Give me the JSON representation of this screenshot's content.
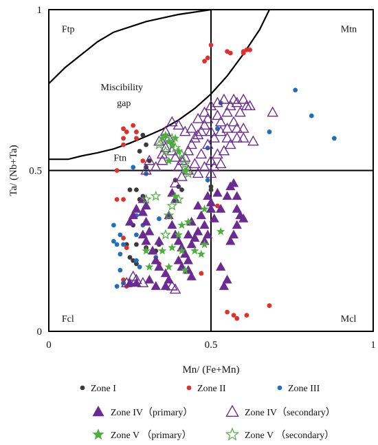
{
  "chart_data": {
    "type": "scatter",
    "xlabel": "Mn/ (Fe+Mn)",
    "ylabel": "Ta/ (Nb+Ta)",
    "xlim": [
      0,
      1
    ],
    "ylim": [
      0,
      1
    ],
    "x_ticks": [
      {
        "value": 0,
        "label": "0"
      },
      {
        "value": 0.5,
        "label": "0.5"
      },
      {
        "value": 1,
        "label": "1"
      }
    ],
    "y_ticks": [
      {
        "value": 0,
        "label": "0"
      },
      {
        "value": 0.5,
        "label": "0.5"
      },
      {
        "value": 1,
        "label": "1"
      }
    ],
    "grid": false,
    "legend_position": "bottom",
    "quadrant_labels": [
      {
        "text": "Ftp",
        "x": 0.04,
        "y": 0.93
      },
      {
        "text": "Mtn",
        "x": 0.9,
        "y": 0.93
      },
      {
        "text": "Ftn",
        "x": 0.2,
        "y": 0.53
      },
      {
        "text": "Fcl",
        "x": 0.04,
        "y": 0.03
      },
      {
        "text": "Mcl",
        "x": 0.9,
        "y": 0.03
      }
    ],
    "annotations": [
      {
        "text": "Miscibility",
        "x": 0.16,
        "y": 0.75
      },
      {
        "text": "gap",
        "x": 0.21,
        "y": 0.7
      }
    ],
    "dividers": {
      "x": 0.5,
      "y": 0.5
    },
    "curves": [
      {
        "name": "upper",
        "points": [
          [
            0,
            0.77
          ],
          [
            0.05,
            0.82
          ],
          [
            0.1,
            0.86
          ],
          [
            0.15,
            0.9
          ],
          [
            0.2,
            0.93
          ],
          [
            0.3,
            0.963
          ],
          [
            0.4,
            0.985
          ],
          [
            0.5,
            1.0
          ]
        ]
      },
      {
        "name": "lower",
        "points": [
          [
            0,
            0.535
          ],
          [
            0.06,
            0.535
          ],
          [
            0.1,
            0.545
          ],
          [
            0.15,
            0.555
          ],
          [
            0.2,
            0.567
          ],
          [
            0.25,
            0.585
          ],
          [
            0.3,
            0.606
          ],
          [
            0.35,
            0.628
          ],
          [
            0.4,
            0.657
          ],
          [
            0.45,
            0.693
          ],
          [
            0.5,
            0.738
          ],
          [
            0.55,
            0.794
          ],
          [
            0.6,
            0.862
          ],
          [
            0.65,
            0.938
          ],
          [
            0.68,
            1.0
          ]
        ]
      }
    ],
    "series": [
      {
        "name": "Zone I",
        "marker": "circle",
        "color": "#3a3a3a",
        "points": [
          [
            0.25,
            0.44
          ],
          [
            0.29,
            0.61
          ],
          [
            0.3,
            0.58
          ],
          [
            0.31,
            0.53
          ],
          [
            0.3,
            0.51
          ],
          [
            0.27,
            0.44
          ],
          [
            0.29,
            0.42
          ],
          [
            0.28,
            0.41
          ],
          [
            0.26,
            0.33
          ],
          [
            0.24,
            0.27
          ],
          [
            0.27,
            0.27
          ],
          [
            0.3,
            0.26
          ],
          [
            0.25,
            0.23
          ],
          [
            0.26,
            0.22
          ],
          [
            0.27,
            0.21
          ],
          [
            0.34,
            0.27
          ],
          [
            0.33,
            0.25
          ],
          [
            0.38,
            0.58
          ],
          [
            0.39,
            0.47
          ],
          [
            0.4,
            0.45
          ],
          [
            0.41,
            0.44
          ],
          [
            0.5,
            0.45
          ],
          [
            0.5,
            0.44
          ],
          [
            0.28,
            0.56
          ]
        ]
      },
      {
        "name": "Zone II",
        "marker": "circle",
        "color": "#e0302b",
        "points": [
          [
            0.48,
            0.84
          ],
          [
            0.49,
            0.85
          ],
          [
            0.5,
            0.89
          ],
          [
            0.55,
            0.87
          ],
          [
            0.56,
            0.865
          ],
          [
            0.6,
            0.87
          ],
          [
            0.61,
            0.875
          ],
          [
            0.62,
            0.875
          ],
          [
            0.6,
            0.865
          ],
          [
            0.23,
            0.63
          ],
          [
            0.24,
            0.62
          ],
          [
            0.23,
            0.6
          ],
          [
            0.23,
            0.58
          ],
          [
            0.26,
            0.64
          ],
          [
            0.27,
            0.62
          ],
          [
            0.27,
            0.6
          ],
          [
            0.21,
            0.5
          ],
          [
            0.21,
            0.41
          ],
          [
            0.23,
            0.41
          ],
          [
            0.23,
            0.29
          ],
          [
            0.24,
            0.26
          ],
          [
            0.23,
            0.16
          ],
          [
            0.23,
            0.15
          ],
          [
            0.24,
            0.14
          ],
          [
            0.34,
            0.21
          ],
          [
            0.47,
            0.18
          ],
          [
            0.55,
            0.06
          ],
          [
            0.57,
            0.05
          ],
          [
            0.58,
            0.04
          ],
          [
            0.61,
            0.05
          ],
          [
            0.68,
            0.08
          ],
          [
            0.52,
            0.39
          ],
          [
            0.29,
            0.53
          ]
        ]
      },
      {
        "name": "Zone III",
        "marker": "circle",
        "color": "#1f6fbf",
        "points": [
          [
            0.76,
            0.75
          ],
          [
            0.81,
            0.67
          ],
          [
            0.88,
            0.6
          ],
          [
            0.68,
            0.62
          ],
          [
            0.53,
            0.71
          ],
          [
            0.49,
            0.57
          ],
          [
            0.26,
            0.51
          ],
          [
            0.2,
            0.33
          ],
          [
            0.2,
            0.28
          ],
          [
            0.22,
            0.3
          ],
          [
            0.21,
            0.27
          ],
          [
            0.23,
            0.27
          ],
          [
            0.27,
            0.36
          ],
          [
            0.27,
            0.3
          ],
          [
            0.22,
            0.24
          ],
          [
            0.22,
            0.19
          ],
          [
            0.27,
            0.22
          ],
          [
            0.28,
            0.2
          ],
          [
            0.33,
            0.23
          ],
          [
            0.34,
            0.35
          ],
          [
            0.29,
            0.33
          ],
          [
            0.21,
            0.14
          ],
          [
            0.23,
            0.15
          ],
          [
            0.3,
            0.49
          ],
          [
            0.49,
            0.47
          ],
          [
            0.52,
            0.63
          ]
        ]
      },
      {
        "name": "Zone IV（primary）",
        "marker": "triangle",
        "color": "#6b2c91",
        "points": [
          [
            0.29,
            0.41
          ],
          [
            0.3,
            0.39
          ],
          [
            0.29,
            0.37
          ],
          [
            0.3,
            0.34
          ],
          [
            0.31,
            0.31
          ],
          [
            0.29,
            0.3
          ],
          [
            0.3,
            0.28
          ],
          [
            0.32,
            0.25
          ],
          [
            0.33,
            0.22
          ],
          [
            0.34,
            0.2
          ],
          [
            0.36,
            0.18
          ],
          [
            0.37,
            0.16
          ],
          [
            0.36,
            0.14
          ],
          [
            0.37,
            0.36
          ],
          [
            0.38,
            0.33
          ],
          [
            0.39,
            0.3
          ],
          [
            0.4,
            0.28
          ],
          [
            0.41,
            0.26
          ],
          [
            0.42,
            0.24
          ],
          [
            0.43,
            0.22
          ],
          [
            0.43,
            0.19
          ],
          [
            0.44,
            0.17
          ],
          [
            0.4,
            0.22
          ],
          [
            0.41,
            0.2
          ],
          [
            0.46,
            0.39
          ],
          [
            0.47,
            0.36
          ],
          [
            0.48,
            0.33
          ],
          [
            0.46,
            0.31
          ],
          [
            0.45,
            0.29
          ],
          [
            0.44,
            0.27
          ],
          [
            0.49,
            0.42
          ],
          [
            0.5,
            0.4
          ],
          [
            0.5,
            0.38
          ],
          [
            0.51,
            0.35
          ],
          [
            0.49,
            0.3
          ],
          [
            0.48,
            0.28
          ],
          [
            0.53,
            0.38
          ],
          [
            0.55,
            0.42
          ],
          [
            0.56,
            0.45
          ],
          [
            0.57,
            0.46
          ],
          [
            0.58,
            0.42
          ],
          [
            0.58,
            0.38
          ],
          [
            0.59,
            0.36
          ],
          [
            0.6,
            0.35
          ],
          [
            0.58,
            0.33
          ],
          [
            0.27,
            0.38
          ],
          [
            0.26,
            0.36
          ],
          [
            0.25,
            0.34
          ],
          [
            0.54,
            0.14
          ],
          [
            0.55,
            0.16
          ],
          [
            0.53,
            0.2
          ],
          [
            0.39,
            0.41
          ],
          [
            0.38,
            0.43
          ],
          [
            0.31,
            0.16
          ],
          [
            0.33,
            0.14
          ],
          [
            0.27,
            0.15
          ],
          [
            0.25,
            0.15
          ],
          [
            0.34,
            0.28
          ],
          [
            0.43,
            0.3
          ],
          [
            0.44,
            0.34
          ],
          [
            0.52,
            0.43
          ],
          [
            0.56,
            0.28
          ],
          [
            0.57,
            0.3
          ]
        ]
      },
      {
        "name": "Zone IV（secondary）",
        "marker": "triangle-open",
        "color": "#6b2c91",
        "points": [
          [
            0.5,
            0.7
          ],
          [
            0.52,
            0.71
          ],
          [
            0.54,
            0.72
          ],
          [
            0.56,
            0.7
          ],
          [
            0.57,
            0.72
          ],
          [
            0.58,
            0.71
          ],
          [
            0.6,
            0.72
          ],
          [
            0.61,
            0.7
          ],
          [
            0.62,
            0.7
          ],
          [
            0.59,
            0.68
          ],
          [
            0.55,
            0.68
          ],
          [
            0.52,
            0.67
          ],
          [
            0.49,
            0.66
          ],
          [
            0.48,
            0.64
          ],
          [
            0.47,
            0.62
          ],
          [
            0.46,
            0.61
          ],
          [
            0.45,
            0.6
          ],
          [
            0.44,
            0.58
          ],
          [
            0.43,
            0.56
          ],
          [
            0.42,
            0.54
          ],
          [
            0.41,
            0.53
          ],
          [
            0.43,
            0.5
          ],
          [
            0.45,
            0.52
          ],
          [
            0.47,
            0.55
          ],
          [
            0.49,
            0.58
          ],
          [
            0.51,
            0.6
          ],
          [
            0.53,
            0.62
          ],
          [
            0.55,
            0.63
          ],
          [
            0.57,
            0.65
          ],
          [
            0.58,
            0.63
          ],
          [
            0.6,
            0.63
          ],
          [
            0.6,
            0.6
          ],
          [
            0.58,
            0.6
          ],
          [
            0.56,
            0.58
          ],
          [
            0.54,
            0.56
          ],
          [
            0.52,
            0.55
          ],
          [
            0.5,
            0.53
          ],
          [
            0.48,
            0.51
          ],
          [
            0.46,
            0.49
          ],
          [
            0.5,
            0.49
          ],
          [
            0.51,
            0.51
          ],
          [
            0.53,
            0.52
          ],
          [
            0.42,
            0.62
          ],
          [
            0.4,
            0.64
          ],
          [
            0.38,
            0.65
          ],
          [
            0.37,
            0.6
          ],
          [
            0.36,
            0.57
          ],
          [
            0.35,
            0.55
          ],
          [
            0.34,
            0.59
          ],
          [
            0.36,
            0.62
          ],
          [
            0.38,
            0.56
          ],
          [
            0.39,
            0.54
          ],
          [
            0.4,
            0.51
          ],
          [
            0.41,
            0.48
          ],
          [
            0.39,
            0.46
          ],
          [
            0.44,
            0.63
          ],
          [
            0.46,
            0.66
          ],
          [
            0.48,
            0.68
          ],
          [
            0.5,
            0.62
          ],
          [
            0.53,
            0.65
          ],
          [
            0.63,
            0.59
          ],
          [
            0.69,
            0.68
          ],
          [
            0.24,
            0.15
          ],
          [
            0.26,
            0.17
          ],
          [
            0.27,
            0.16
          ],
          [
            0.29,
            0.15
          ],
          [
            0.38,
            0.14
          ],
          [
            0.39,
            0.13
          ],
          [
            0.3,
            0.5
          ],
          [
            0.31,
            0.53
          ],
          [
            0.33,
            0.51
          ],
          [
            0.35,
            0.53
          ],
          [
            0.55,
            0.6
          ]
        ]
      },
      {
        "name": "Zone V  （primary）",
        "marker": "star",
        "color": "#4caf3a",
        "points": [
          [
            0.4,
            0.3
          ],
          [
            0.38,
            0.26
          ],
          [
            0.37,
            0.2
          ],
          [
            0.31,
            0.2
          ],
          [
            0.3,
            0.25
          ],
          [
            0.35,
            0.25
          ],
          [
            0.41,
            0.25
          ],
          [
            0.45,
            0.25
          ],
          [
            0.48,
            0.27
          ],
          [
            0.47,
            0.24
          ],
          [
            0.42,
            0.19
          ],
          [
            0.41,
            0.33
          ],
          [
            0.43,
            0.34
          ],
          [
            0.53,
            0.31
          ],
          [
            0.37,
            0.59
          ],
          [
            0.38,
            0.58
          ],
          [
            0.35,
            0.6
          ],
          [
            0.36,
            0.61
          ],
          [
            0.39,
            0.6
          ],
          [
            0.4,
            0.56
          ],
          [
            0.37,
            0.53
          ],
          [
            0.42,
            0.5
          ],
          [
            0.39,
            0.42
          ],
          [
            0.48,
            0.38
          ]
        ]
      },
      {
        "name": "Zone V  （secondary）",
        "marker": "star-open",
        "color": "#4caf3a",
        "points": [
          [
            0.33,
            0.42
          ],
          [
            0.34,
            0.58
          ],
          [
            0.36,
            0.56
          ],
          [
            0.38,
            0.6
          ],
          [
            0.39,
            0.57
          ],
          [
            0.41,
            0.55
          ],
          [
            0.42,
            0.52
          ],
          [
            0.43,
            0.49
          ],
          [
            0.38,
            0.39
          ],
          [
            0.37,
            0.36
          ],
          [
            0.36,
            0.3
          ],
          [
            0.4,
            0.41
          ],
          [
            0.3,
            0.41
          ]
        ]
      }
    ]
  }
}
